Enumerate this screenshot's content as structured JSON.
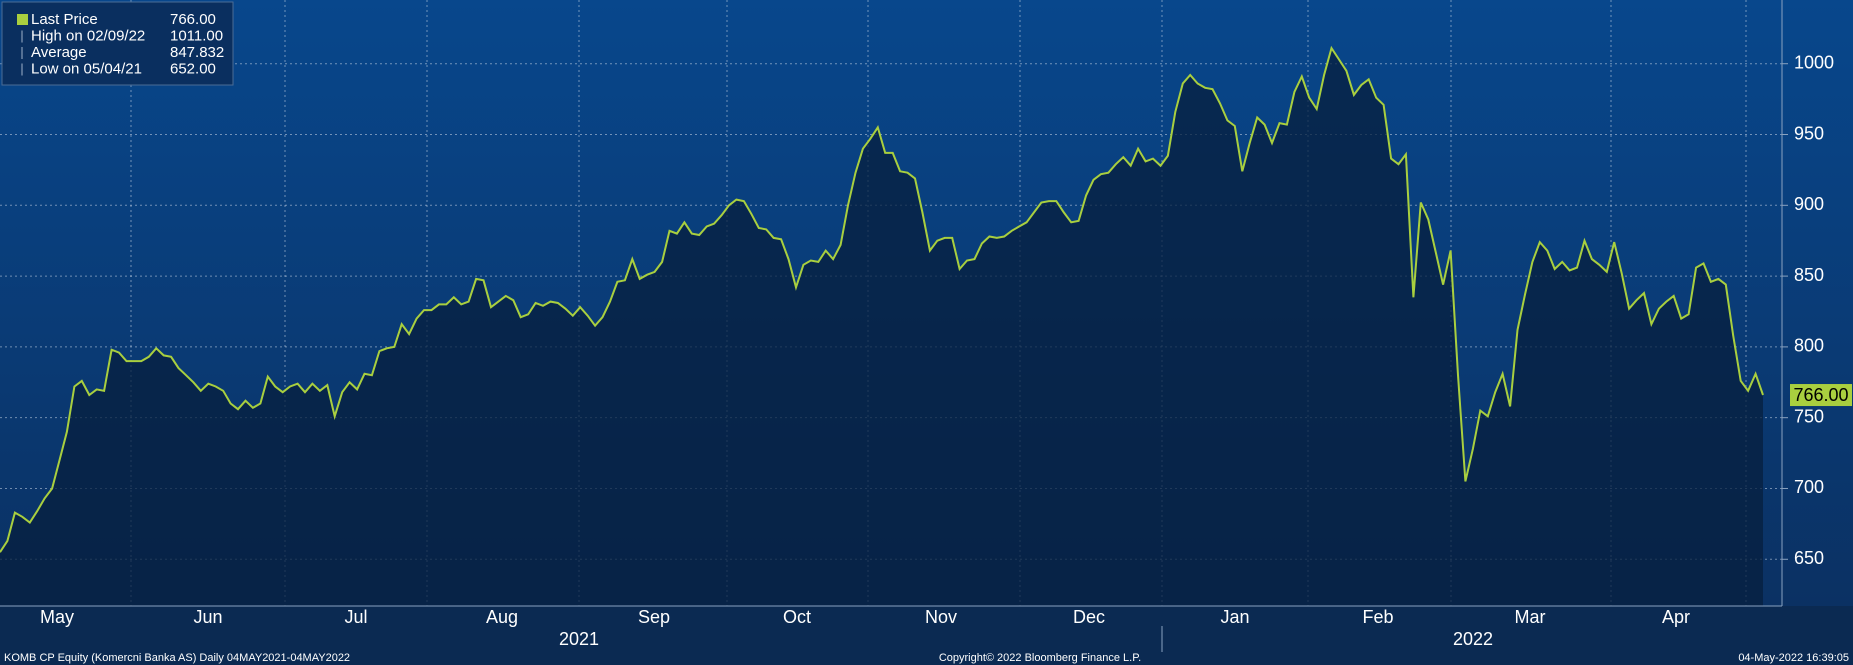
{
  "chart_data": {
    "type": "line",
    "legend": [
      {
        "name": "Last Price",
        "value": 766,
        "label": "766.00"
      },
      {
        "name": "High on 02/09/22",
        "value": 1011,
        "label": "1011.00"
      },
      {
        "name": "Average",
        "value": 847.832
      },
      {
        "name": "Low on 05/04/21",
        "value": 652,
        "label": "652.00"
      }
    ],
    "series": [
      {
        "color": "#a9cf3f",
        "values": [
          655,
          663,
          683,
          680,
          676,
          684,
          693,
          700,
          720,
          740,
          772,
          776,
          766,
          770,
          769,
          798,
          796,
          790,
          790,
          790,
          793,
          799,
          794,
          793,
          785,
          780,
          775,
          769,
          774,
          772,
          769,
          760,
          756,
          762,
          757,
          760,
          779,
          772,
          768,
          772,
          774,
          768,
          774,
          769,
          773,
          751,
          768,
          775,
          770,
          781,
          780,
          797,
          799,
          800,
          816,
          809,
          820,
          826,
          826,
          830,
          830,
          835,
          830,
          832,
          848,
          847,
          828,
          832,
          836,
          833,
          821,
          823,
          831,
          829,
          832,
          831,
          827,
          822,
          828,
          822,
          815,
          821,
          832,
          846,
          847,
          862,
          848,
          851,
          853,
          860,
          882,
          880,
          888,
          880,
          879,
          885,
          887,
          893,
          900,
          904,
          903,
          894,
          884,
          883,
          877,
          876,
          862,
          842,
          858,
          861,
          860,
          868,
          862,
          872,
          900,
          923,
          940,
          947,
          955,
          937,
          937,
          924,
          923,
          919,
          895,
          868,
          875,
          877,
          877,
          855,
          861,
          862,
          873,
          878,
          877,
          878,
          882,
          885,
          888,
          895,
          902,
          903,
          903,
          895,
          888,
          889,
          907,
          918,
          922,
          923,
          929,
          934,
          928,
          940,
          931,
          933,
          928,
          935,
          966,
          986,
          992,
          986,
          983,
          982,
          972,
          960,
          956,
          924,
          944,
          962,
          957,
          944,
          958,
          957,
          980,
          991,
          976,
          968,
          992,
          1011,
          1003,
          995,
          978,
          985,
          989,
          976,
          971,
          933,
          929,
          936,
          835,
          902,
          890,
          867,
          844,
          868,
          780,
          705,
          728,
          755,
          751,
          768,
          781,
          758,
          812,
          837,
          860,
          874,
          868,
          855,
          860,
          854,
          856,
          875,
          862,
          858,
          853,
          874,
          852,
          827,
          833,
          838,
          816,
          827,
          832,
          836,
          820,
          823,
          856,
          859,
          846,
          848,
          844,
          808,
          776,
          769,
          781,
          766
        ]
      }
    ],
    "ylim": [
      617,
      1045
    ],
    "yticks": [
      650,
      700,
      750,
      800,
      850,
      900,
      950,
      1000
    ],
    "grid": true,
    "x_labels": [
      "May",
      "Jun",
      "Jul",
      "Aug",
      "Sep",
      "Oct",
      "Nov",
      "Dec",
      "Jan",
      "Feb",
      "Mar",
      "Apr"
    ],
    "year_labels": [
      "2021",
      "2022"
    ],
    "footer": {
      "left": "KOMB CP Equity (Komercni Banka AS)  Daily 04MAY2021-04MAY2022",
      "center": "Copyright© 2022 Bloomberg Finance L.P.",
      "right": "04-May-2022 16:39:05"
    }
  }
}
